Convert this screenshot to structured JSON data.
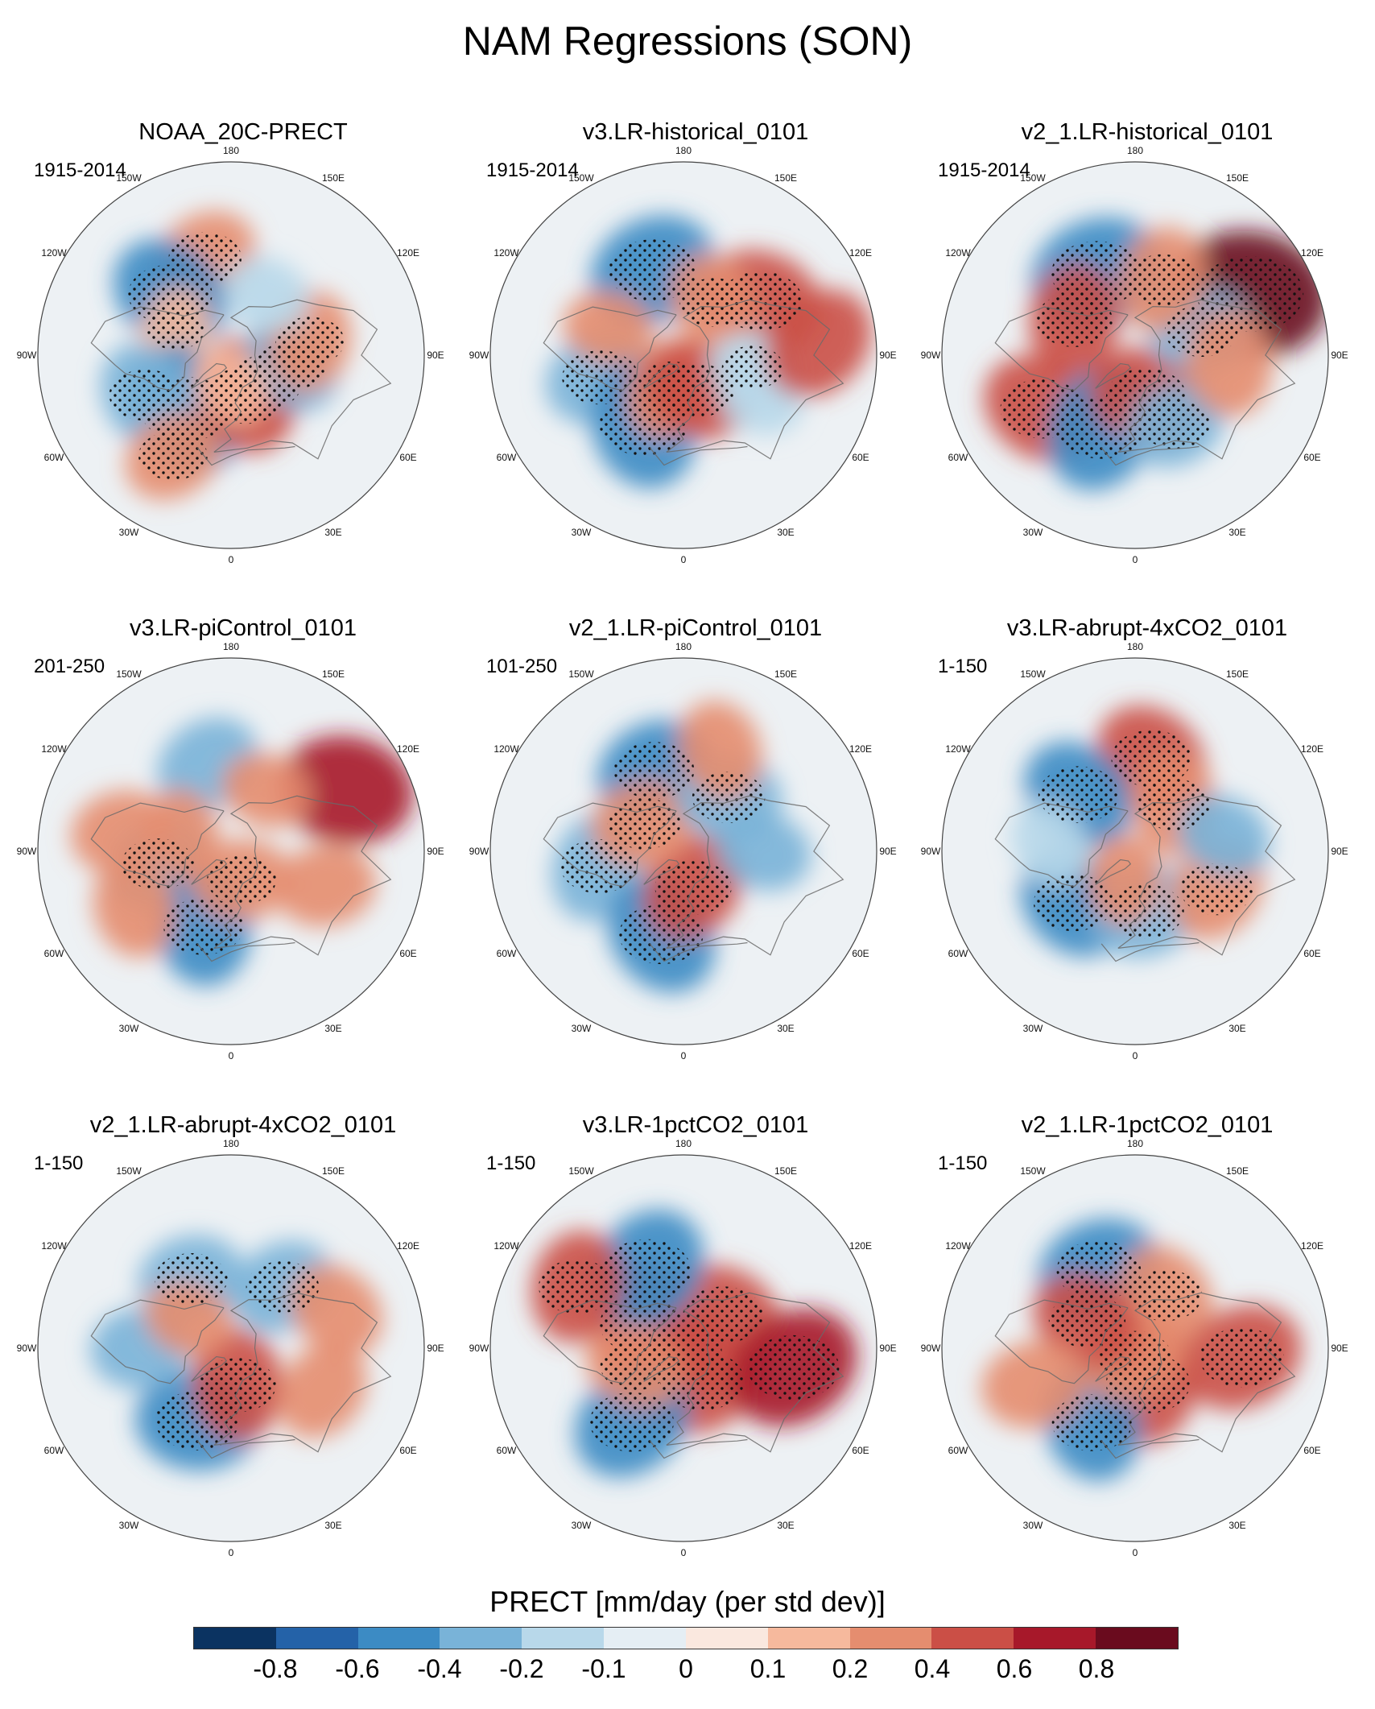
{
  "figure": {
    "title": "NAM Regressions (SON)"
  },
  "panels": [
    {
      "title": "NOAA_20C-PRECT",
      "period": "1915-2014"
    },
    {
      "title": "v3.LR-historical_0101",
      "period": "1915-2014"
    },
    {
      "title": "v2_1.LR-historical_0101",
      "period": "1915-2014"
    },
    {
      "title": "v3.LR-piControl_0101",
      "period": "201-250"
    },
    {
      "title": "v2_1.LR-piControl_0101",
      "period": "101-250"
    },
    {
      "title": "v3.LR-abrupt-4xCO2_0101",
      "period": "1-150"
    },
    {
      "title": "v2_1.LR-abrupt-4xCO2_0101",
      "period": "1-150"
    },
    {
      "title": "v3.LR-1pctCO2_0101",
      "period": "1-150"
    },
    {
      "title": "v2_1.LR-1pctCO2_0101",
      "period": "1-150"
    }
  ],
  "map_labels": [
    "180",
    "150E",
    "120E",
    "90E",
    "60E",
    "30E",
    "0",
    "30W",
    "60W",
    "90W",
    "120W",
    "150W"
  ],
  "chart_data": {
    "type": "heatmap",
    "projection": "north polar stereographic",
    "title": "NAM Regressions (SON)",
    "colorbar": {
      "title": "PRECT [mm/day (per std dev)]",
      "ticks": [
        "-0.8",
        "-0.6",
        "-0.4",
        "-0.2",
        "-0.1",
        "0",
        "0.1",
        "0.2",
        "0.4",
        "0.6",
        "0.8"
      ],
      "colors": [
        "#0b3361",
        "#2462a8",
        "#3c8bc4",
        "#79b3d8",
        "#b8d8ea",
        "#e5eef4",
        "#fae8df",
        "#f6b99d",
        "#e58d6f",
        "#cb4f46",
        "#a7182a",
        "#6a0b1e"
      ]
    },
    "stippling": "regression significant",
    "panels": [
      {
        "name": "NOAA_20C-PRECT",
        "period": "1915-2014",
        "blobs": [
          {
            "lon": -165,
            "lat": 35,
            "v": 0.35,
            "s": 1
          },
          {
            "lon": -135,
            "lat": 42,
            "v": -0.5,
            "s": 1
          },
          {
            "lon": -115,
            "lat": 55,
            "v": 0.15,
            "s": 1
          },
          {
            "lon": -40,
            "lat": 50,
            "v": -0.6,
            "s": 1
          },
          {
            "lon": -65,
            "lat": 38,
            "v": -0.35,
            "s": 1
          },
          {
            "lon": -30,
            "lat": 28,
            "v": 0.3,
            "s": 1
          },
          {
            "lon": 20,
            "lat": 65,
            "v": 0.45,
            "s": 1
          },
          {
            "lon": 50,
            "lat": 65,
            "v": 0.4,
            "s": 1
          },
          {
            "lon": 80,
            "lat": 55,
            "v": -0.3,
            "s": 1
          },
          {
            "lon": 100,
            "lat": 45,
            "v": 0.3,
            "s": 1
          },
          {
            "lon": 150,
            "lat": 50,
            "v": -0.2,
            "s": 0
          },
          {
            "lon": 0,
            "lat": 72,
            "v": 0.15,
            "s": 0
          }
        ]
      },
      {
        "name": "v3.LR-historical_0101",
        "period": "1915-2014",
        "blobs": [
          {
            "lon": -160,
            "lat": 40,
            "v": -0.55,
            "s": 1
          },
          {
            "lon": 125,
            "lat": 38,
            "v": 0.5,
            "s": 1
          },
          {
            "lon": -75,
            "lat": 42,
            "v": -0.4,
            "s": 1
          },
          {
            "lon": -30,
            "lat": 45,
            "v": -0.55,
            "s": 1
          },
          {
            "lon": -20,
            "lat": 70,
            "v": 0.35,
            "s": 1
          },
          {
            "lon": 20,
            "lat": 68,
            "v": 0.4,
            "s": 1
          },
          {
            "lon": 150,
            "lat": 55,
            "v": 0.3,
            "s": 1
          },
          {
            "lon": 80,
            "lat": 50,
            "v": -0.2,
            "s": 1
          },
          {
            "lon": 60,
            "lat": 40,
            "v": -0.15,
            "s": 0
          },
          {
            "lon": -110,
            "lat": 45,
            "v": 0.2,
            "s": 0
          },
          {
            "lon": 95,
            "lat": 20,
            "v": 0.45,
            "s": 0
          }
        ]
      },
      {
        "name": "v2_1.LR-historical_0101",
        "period": "1915-2014",
        "blobs": [
          {
            "lon": -155,
            "lat": 40,
            "v": -0.6,
            "s": 1
          },
          {
            "lon": 118,
            "lat": 22,
            "v": 0.8,
            "s": 1
          },
          {
            "lon": -120,
            "lat": 50,
            "v": 0.4,
            "s": 1
          },
          {
            "lon": -60,
            "lat": 32,
            "v": 0.5,
            "s": 1
          },
          {
            "lon": -25,
            "lat": 45,
            "v": -0.55,
            "s": 1
          },
          {
            "lon": 15,
            "lat": 65,
            "v": 0.45,
            "s": 1
          },
          {
            "lon": 110,
            "lat": 50,
            "v": -0.35,
            "s": 1
          },
          {
            "lon": 160,
            "lat": 45,
            "v": 0.35,
            "s": 1
          },
          {
            "lon": 30,
            "lat": 45,
            "v": -0.3,
            "s": 1
          },
          {
            "lon": 85,
            "lat": 38,
            "v": 0.35,
            "s": 0
          }
        ]
      },
      {
        "name": "v3.LR-piControl_0101",
        "period": "201-250",
        "blobs": [
          {
            "lon": -165,
            "lat": 40,
            "v": -0.35,
            "s": 0
          },
          {
            "lon": 118,
            "lat": 22,
            "v": 0.6,
            "s": 0
          },
          {
            "lon": -80,
            "lat": 48,
            "v": -0.35,
            "s": 1
          },
          {
            "lon": -20,
            "lat": 45,
            "v": -0.45,
            "s": 1
          },
          {
            "lon": 20,
            "lat": 72,
            "v": 0.3,
            "s": 1
          },
          {
            "lon": 150,
            "lat": 50,
            "v": 0.2,
            "s": 0
          },
          {
            "lon": -110,
            "lat": 60,
            "v": 0.2,
            "s": 0
          },
          {
            "lon": 70,
            "lat": 35,
            "v": 0.3,
            "s": 0
          },
          {
            "lon": -100,
            "lat": 30,
            "v": 0.3,
            "s": 0
          },
          {
            "lon": -60,
            "lat": 30,
            "v": 0.3,
            "s": 0
          }
        ]
      },
      {
        "name": "v2_1.LR-piControl_0101",
        "period": "101-250",
        "blobs": [
          {
            "lon": -160,
            "lat": 42,
            "v": -0.45,
            "s": 1
          },
          {
            "lon": -80,
            "lat": 42,
            "v": -0.4,
            "s": 1
          },
          {
            "lon": -15,
            "lat": 42,
            "v": -0.5,
            "s": 1
          },
          {
            "lon": 15,
            "lat": 68,
            "v": 0.4,
            "s": 1
          },
          {
            "lon": -125,
            "lat": 62,
            "v": 0.35,
            "s": 1
          },
          {
            "lon": 140,
            "lat": 50,
            "v": -0.35,
            "s": 1
          },
          {
            "lon": 160,
            "lat": 32,
            "v": 0.3,
            "s": 0
          },
          {
            "lon": 90,
            "lat": 45,
            "v": -0.25,
            "s": 0
          }
        ]
      },
      {
        "name": "v3.LR-abrupt-4xCO2_0101",
        "period": "1-150",
        "blobs": [
          {
            "lon": 170,
            "lat": 38,
            "v": 0.45,
            "s": 1
          },
          {
            "lon": -135,
            "lat": 45,
            "v": -0.45,
            "s": 1
          },
          {
            "lon": 140,
            "lat": 55,
            "v": 0.35,
            "s": 1
          },
          {
            "lon": -50,
            "lat": 45,
            "v": -0.45,
            "s": 1
          },
          {
            "lon": 10,
            "lat": 55,
            "v": -0.4,
            "s": 1
          },
          {
            "lon": -95,
            "lat": 42,
            "v": -0.2,
            "s": 0
          },
          {
            "lon": 65,
            "lat": 40,
            "v": 0.35,
            "s": 1
          },
          {
            "lon": 100,
            "lat": 40,
            "v": -0.25,
            "s": 0
          },
          {
            "lon": -20,
            "lat": 72,
            "v": 0.2,
            "s": 0
          }
        ]
      },
      {
        "name": "v2_1.LR-abrupt-4xCO2_0101",
        "period": "1-150",
        "blobs": [
          {
            "lon": -150,
            "lat": 45,
            "v": -0.35,
            "s": 1
          },
          {
            "lon": -25,
            "lat": 45,
            "v": -0.5,
            "s": 1
          },
          {
            "lon": 10,
            "lat": 68,
            "v": 0.4,
            "s": 1
          },
          {
            "lon": -90,
            "lat": 40,
            "v": -0.3,
            "s": 0
          },
          {
            "lon": 140,
            "lat": 45,
            "v": -0.35,
            "s": 1
          },
          {
            "lon": -125,
            "lat": 60,
            "v": 0.2,
            "s": 0
          },
          {
            "lon": 65,
            "lat": 35,
            "v": 0.3,
            "s": 0
          },
          {
            "lon": 110,
            "lat": 30,
            "v": 0.3,
            "s": 0
          }
        ]
      },
      {
        "name": "v3.LR-1pctCO2_0101",
        "period": "1-150",
        "blobs": [
          {
            "lon": 0,
            "lat": 88,
            "v": 0.4,
            "s": 1
          },
          {
            "lon": 130,
            "lat": 60,
            "v": 0.45,
            "s": 1
          },
          {
            "lon": -120,
            "lat": 62,
            "v": 0.5,
            "s": 1
          },
          {
            "lon": 30,
            "lat": 68,
            "v": 0.5,
            "s": 1
          },
          {
            "lon": -155,
            "lat": 42,
            "v": -0.55,
            "s": 1
          },
          {
            "lon": -35,
            "lat": 40,
            "v": -0.5,
            "s": 1
          },
          {
            "lon": 80,
            "lat": 30,
            "v": 0.6,
            "s": 1
          },
          {
            "lon": -120,
            "lat": 25,
            "v": 0.4,
            "s": 1
          },
          {
            "lon": -70,
            "lat": 60,
            "v": 0.3,
            "s": 1
          }
        ]
      },
      {
        "name": "v2_1.LR-1pctCO2_0101",
        "period": "1-150",
        "blobs": [
          {
            "lon": -155,
            "lat": 42,
            "v": -0.5,
            "s": 1
          },
          {
            "lon": 150,
            "lat": 55,
            "v": 0.35,
            "s": 1
          },
          {
            "lon": 20,
            "lat": 68,
            "v": 0.5,
            "s": 1
          },
          {
            "lon": -30,
            "lat": 42,
            "v": -0.45,
            "s": 1
          },
          {
            "lon": 0,
            "lat": 85,
            "v": 0.35,
            "s": 1
          },
          {
            "lon": -120,
            "lat": 58,
            "v": 0.4,
            "s": 1
          },
          {
            "lon": 85,
            "lat": 32,
            "v": 0.5,
            "s": 1
          },
          {
            "lon": -70,
            "lat": 32,
            "v": 0.35,
            "s": 0
          }
        ]
      }
    ]
  }
}
